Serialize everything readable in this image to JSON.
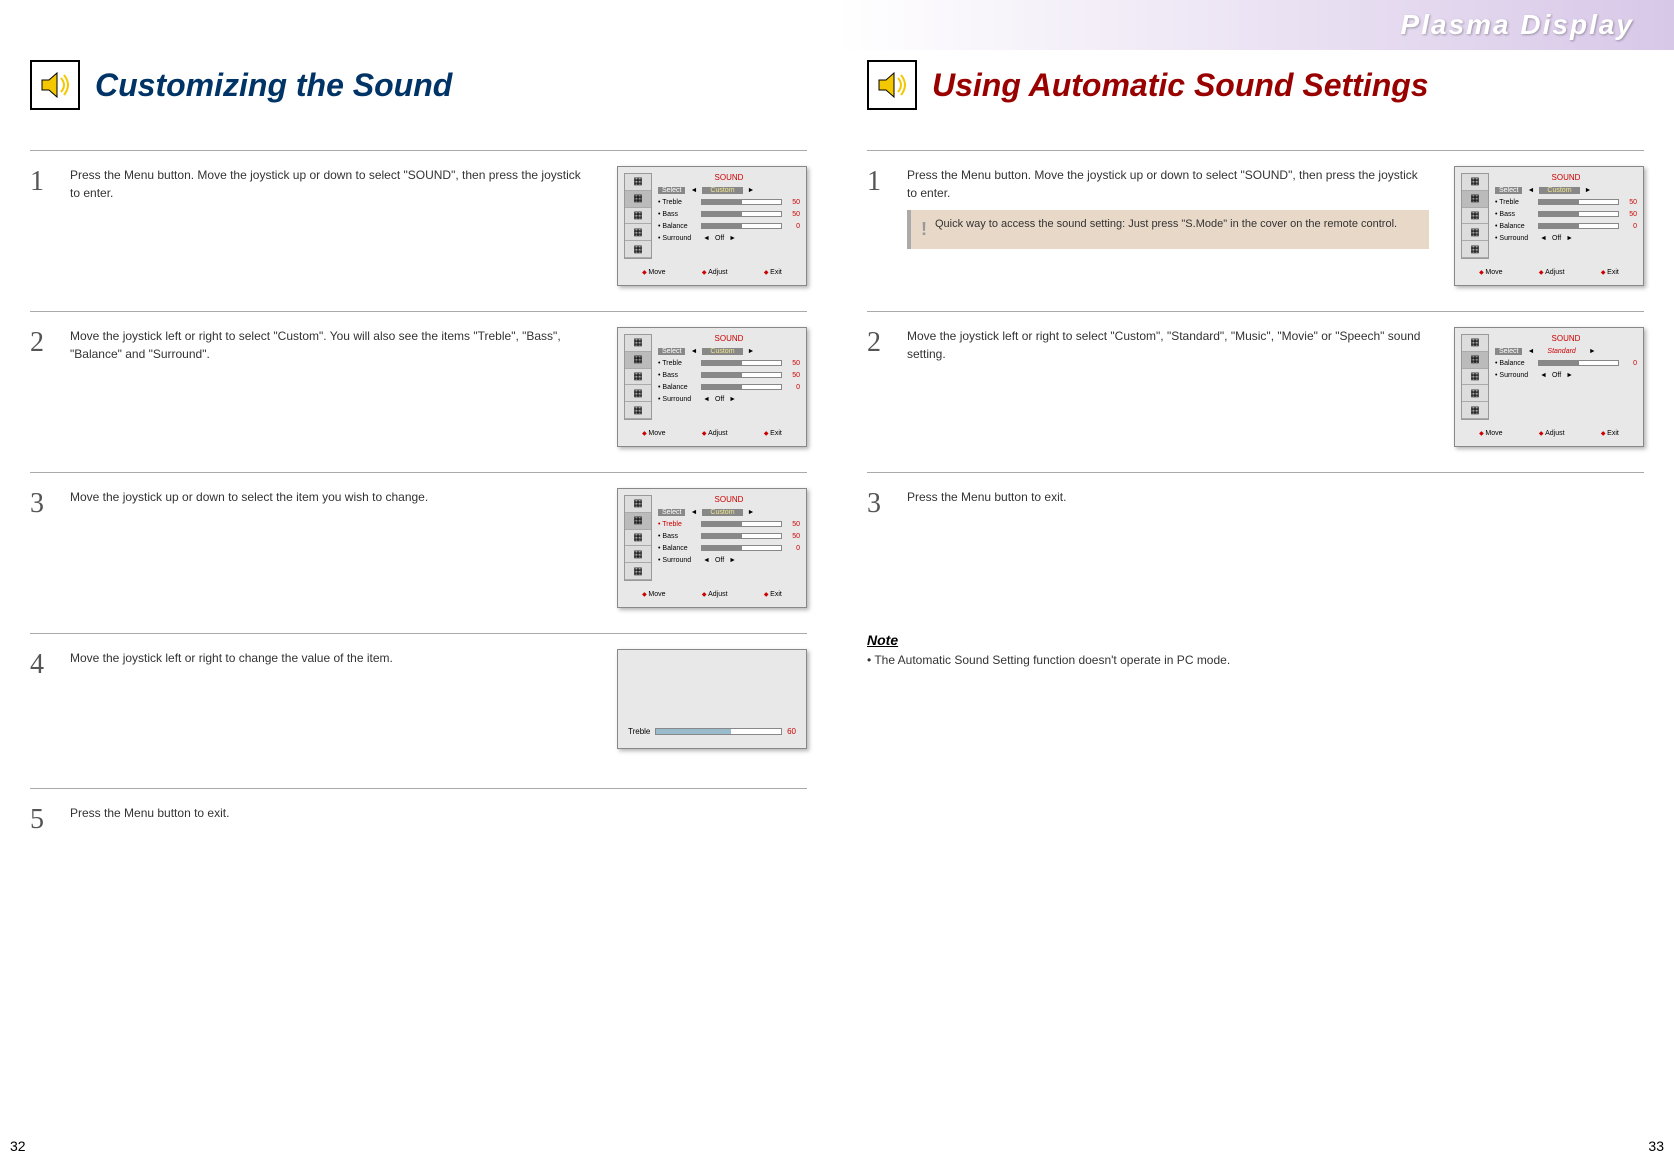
{
  "brand": "Plasma Display",
  "left": {
    "title": "Customizing the Sound",
    "pagenum": "32",
    "steps": [
      {
        "num": "1",
        "text": "Press the Menu button. Move the joystick up or down to select \"SOUND\", then press the joystick to enter.",
        "osd": "menu1"
      },
      {
        "num": "2",
        "text": "Move the joystick left or right to select \"Custom\". You will also see the items \"Treble\", \"Bass\", \"Balance\" and \"Surround\".",
        "osd": "menu2"
      },
      {
        "num": "3",
        "text": "Move the joystick up or down to select the item you wish to change.",
        "osd": "menu3"
      },
      {
        "num": "4",
        "text": "Move the joystick left or right to change the value of the item.",
        "osd": "adjust"
      },
      {
        "num": "5",
        "text": "Press the Menu button to exit."
      }
    ]
  },
  "right": {
    "title": "Using Automatic Sound Settings",
    "pagenum": "33",
    "steps": [
      {
        "num": "1",
        "text": "Press the Menu button. Move the joystick up or down to select \"SOUND\", then press the joystick to enter.",
        "tip": "Quick way to access the sound setting: Just press \"S.Mode\" in the cover on the remote control.",
        "osd": "menu1"
      },
      {
        "num": "2",
        "text": "Move the joystick left or right to select \"Custom\", \"Standard\", \"Music\", \"Movie\" or \"Speech\" sound setting.",
        "osd": "standard"
      },
      {
        "num": "3",
        "text": "Press the Menu button to exit."
      }
    ],
    "note_hdr": "Note",
    "note_text": "• The Automatic Sound Setting function doesn't operate in PC mode."
  },
  "osd": {
    "title": "SOUND",
    "select_label": "Select",
    "custom": "Custom",
    "standard": "Standard",
    "items": [
      {
        "label": "Treble",
        "value": "50",
        "fill": 50
      },
      {
        "label": "Bass",
        "value": "50",
        "fill": 50
      },
      {
        "label": "Balance",
        "value": "0",
        "fill": 50
      },
      {
        "label": "Surround",
        "value": "Off"
      }
    ],
    "footer": {
      "move": "Move",
      "adjust": "Adjust",
      "exit": "Exit"
    },
    "adjust": {
      "label": "Treble",
      "value": "60",
      "fill": 60
    },
    "nav_icons": [
      "▦",
      "▦",
      "▦",
      "▦",
      "▦"
    ],
    "colors": {
      "title": "#cc0000",
      "value": "#cc0000",
      "highlight": "#cc0000",
      "shadow": "rgba(0,0,0,0.3)",
      "bg": "#e8e8e8"
    }
  }
}
